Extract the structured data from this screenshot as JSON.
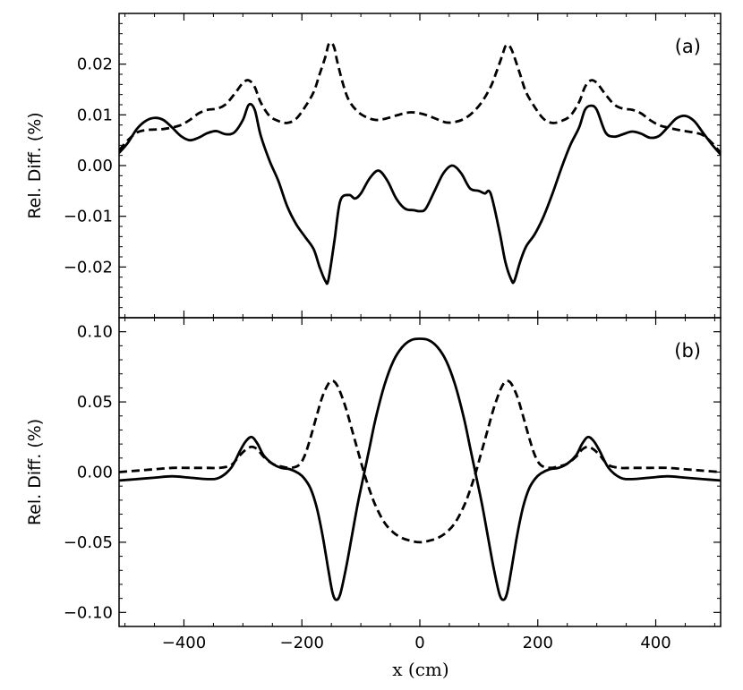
{
  "chart_data": [
    {
      "type": "line",
      "panel_label": "(a)",
      "ylabel": "Rel. Diff. (%)",
      "xlim": [
        -510,
        510
      ],
      "ylim": [
        -0.03,
        0.03
      ],
      "xticks": [
        -400,
        -200,
        0,
        200,
        400
      ],
      "xtick_labels": [
        "−400",
        "−200",
        "0",
        "200",
        "400"
      ],
      "yticks": [
        -0.02,
        -0.01,
        0.0,
        0.01,
        0.02
      ],
      "ytick_labels": [
        "−0.02",
        "−0.01",
        "0.00",
        "0.01",
        "0.02"
      ],
      "grid": false,
      "series": [
        {
          "style": "solid",
          "x": [
            -510,
            -495,
            -480,
            -465,
            -450,
            -435,
            -420,
            -405,
            -390,
            -375,
            -360,
            -345,
            -330,
            -315,
            -300,
            -290,
            -280,
            -270,
            -255,
            -240,
            -225,
            -210,
            -195,
            -180,
            -170,
            -160,
            -155,
            -145,
            -135,
            -120,
            -110,
            -100,
            -85,
            -70,
            -55,
            -40,
            -25,
            -10,
            0,
            10,
            25,
            40,
            55,
            70,
            85,
            100,
            110,
            120,
            135,
            145,
            155,
            160,
            170,
            180,
            195,
            210,
            225,
            240,
            255,
            270,
            280,
            290,
            300,
            315,
            330,
            345,
            360,
            375,
            390,
            405,
            420,
            435,
            450,
            465,
            480,
            495,
            510
          ],
          "y": [
            0.0025,
            0.0045,
            0.0072,
            0.0088,
            0.0094,
            0.009,
            0.0075,
            0.0058,
            0.005,
            0.0055,
            0.0064,
            0.0068,
            0.0062,
            0.0065,
            0.009,
            0.012,
            0.011,
            0.006,
            0.001,
            -0.003,
            -0.008,
            -0.0115,
            -0.014,
            -0.0165,
            -0.02,
            -0.0228,
            -0.0225,
            -0.015,
            -0.007,
            -0.0058,
            -0.0065,
            -0.0055,
            -0.0025,
            -0.001,
            -0.003,
            -0.0065,
            -0.0085,
            -0.0088,
            -0.009,
            -0.0085,
            -0.005,
            -0.0015,
            0.0,
            -0.0015,
            -0.0045,
            -0.005,
            -0.0055,
            -0.0055,
            -0.013,
            -0.019,
            -0.0225,
            -0.0228,
            -0.019,
            -0.016,
            -0.0135,
            -0.01,
            -0.0055,
            -0.0005,
            0.004,
            0.0075,
            0.011,
            0.0118,
            0.011,
            0.0065,
            0.0057,
            0.0062,
            0.0067,
            0.0063,
            0.0055,
            0.0058,
            0.0075,
            0.0093,
            0.0098,
            0.0088,
            0.0065,
            0.0042,
            0.0022
          ]
        },
        {
          "style": "dashed",
          "x": [
            -510,
            -495,
            -480,
            -465,
            -450,
            -435,
            -420,
            -405,
            -390,
            -375,
            -360,
            -345,
            -330,
            -315,
            -300,
            -290,
            -280,
            -270,
            -255,
            -240,
            -225,
            -210,
            -195,
            -180,
            -170,
            -160,
            -155,
            -150,
            -145,
            -140,
            -130,
            -120,
            -105,
            -90,
            -75,
            -60,
            -45,
            -30,
            -15,
            0,
            15,
            30,
            45,
            60,
            75,
            90,
            105,
            120,
            130,
            140,
            145,
            150,
            155,
            160,
            170,
            180,
            195,
            210,
            225,
            240,
            255,
            270,
            280,
            290,
            300,
            315,
            330,
            345,
            360,
            375,
            390,
            405,
            420,
            435,
            450,
            465,
            480,
            495,
            510
          ],
          "y": [
            0.003,
            0.005,
            0.0065,
            0.007,
            0.0071,
            0.0072,
            0.0075,
            0.008,
            0.009,
            0.0103,
            0.011,
            0.0112,
            0.012,
            0.014,
            0.0163,
            0.0168,
            0.0155,
            0.0125,
            0.0098,
            0.0088,
            0.0084,
            0.0092,
            0.0115,
            0.0145,
            0.018,
            0.0215,
            0.0238,
            0.0242,
            0.0232,
            0.0205,
            0.016,
            0.0128,
            0.0106,
            0.0095,
            0.009,
            0.0092,
            0.0097,
            0.0102,
            0.0105,
            0.0103,
            0.0098,
            0.0091,
            0.0085,
            0.0086,
            0.0092,
            0.0105,
            0.0125,
            0.0155,
            0.0185,
            0.0218,
            0.0235,
            0.0238,
            0.023,
            0.0215,
            0.018,
            0.0145,
            0.0115,
            0.0092,
            0.0084,
            0.0088,
            0.0098,
            0.0125,
            0.0155,
            0.0168,
            0.0163,
            0.014,
            0.012,
            0.0112,
            0.011,
            0.0103,
            0.009,
            0.008,
            0.0075,
            0.0071,
            0.0068,
            0.0065,
            0.006,
            0.0045,
            0.0025
          ]
        }
      ]
    },
    {
      "type": "line",
      "panel_label": "(b)",
      "ylabel": "Rel. Diff. (%)",
      "xlabel": "x (cm)",
      "xlim": [
        -510,
        510
      ],
      "ylim": [
        -0.11,
        0.11
      ],
      "xticks": [
        -400,
        -200,
        0,
        200,
        400
      ],
      "xtick_labels": [
        "−400",
        "−200",
        "0",
        "200",
        "400"
      ],
      "yticks": [
        -0.1,
        -0.05,
        0.0,
        0.05,
        0.1
      ],
      "ytick_labels": [
        "−0.10",
        "−0.05",
        "0.00",
        "0.05",
        "0.10"
      ],
      "grid": false,
      "series": [
        {
          "style": "solid",
          "x": [
            -510,
            -480,
            -450,
            -420,
            -390,
            -360,
            -340,
            -320,
            -305,
            -295,
            -285,
            -275,
            -265,
            -250,
            -235,
            -220,
            -205,
            -195,
            -185,
            -175,
            -165,
            -155,
            -148,
            -142,
            -135,
            -125,
            -115,
            -105,
            -95,
            -85,
            -75,
            -60,
            -45,
            -30,
            -15,
            0,
            15,
            30,
            45,
            60,
            75,
            85,
            95,
            105,
            115,
            125,
            135,
            142,
            148,
            155,
            165,
            175,
            185,
            195,
            205,
            220,
            235,
            250,
            265,
            275,
            285,
            295,
            305,
            320,
            340,
            360,
            390,
            420,
            450,
            480,
            510
          ],
          "y": [
            -0.006,
            -0.005,
            -0.004,
            -0.003,
            -0.004,
            -0.005,
            -0.004,
            0.003,
            0.015,
            0.022,
            0.025,
            0.02,
            0.012,
            0.006,
            0.003,
            0.002,
            -0.001,
            -0.005,
            -0.012,
            -0.025,
            -0.045,
            -0.07,
            -0.086,
            -0.091,
            -0.087,
            -0.068,
            -0.045,
            -0.022,
            -0.002,
            0.018,
            0.038,
            0.062,
            0.079,
            0.089,
            0.094,
            0.095,
            0.094,
            0.089,
            0.079,
            0.062,
            0.038,
            0.018,
            -0.002,
            -0.022,
            -0.045,
            -0.068,
            -0.087,
            -0.091,
            -0.086,
            -0.07,
            -0.045,
            -0.025,
            -0.012,
            -0.005,
            -0.001,
            0.002,
            0.003,
            0.006,
            0.012,
            0.02,
            0.025,
            0.022,
            0.015,
            0.003,
            -0.004,
            -0.005,
            -0.004,
            -0.003,
            -0.004,
            -0.005,
            -0.006
          ]
        },
        {
          "style": "dashed",
          "x": [
            -510,
            -480,
            -450,
            -420,
            -390,
            -360,
            -340,
            -320,
            -305,
            -295,
            -285,
            -275,
            -265,
            -250,
            -235,
            -220,
            -205,
            -195,
            -185,
            -175,
            -165,
            -155,
            -148,
            -142,
            -135,
            -125,
            -115,
            -105,
            -95,
            -85,
            -75,
            -60,
            -45,
            -30,
            -15,
            0,
            15,
            30,
            45,
            60,
            75,
            85,
            95,
            105,
            115,
            125,
            135,
            142,
            148,
            155,
            165,
            175,
            185,
            195,
            205,
            220,
            235,
            250,
            265,
            275,
            285,
            295,
            305,
            320,
            340,
            360,
            390,
            420,
            450,
            480,
            510
          ],
          "y": [
            0.0,
            0.001,
            0.002,
            0.003,
            0.003,
            0.003,
            0.003,
            0.005,
            0.012,
            0.016,
            0.018,
            0.016,
            0.011,
            0.006,
            0.004,
            0.003,
            0.005,
            0.012,
            0.025,
            0.04,
            0.054,
            0.063,
            0.065,
            0.063,
            0.057,
            0.045,
            0.03,
            0.015,
            0.0,
            -0.013,
            -0.024,
            -0.036,
            -0.043,
            -0.047,
            -0.049,
            -0.05,
            -0.049,
            -0.047,
            -0.043,
            -0.036,
            -0.024,
            -0.013,
            0.0,
            0.015,
            0.03,
            0.045,
            0.057,
            0.063,
            0.065,
            0.063,
            0.054,
            0.04,
            0.025,
            0.012,
            0.005,
            0.003,
            0.004,
            0.006,
            0.011,
            0.016,
            0.018,
            0.016,
            0.012,
            0.005,
            0.003,
            0.003,
            0.003,
            0.003,
            0.002,
            0.001,
            0.0
          ]
        }
      ]
    }
  ]
}
